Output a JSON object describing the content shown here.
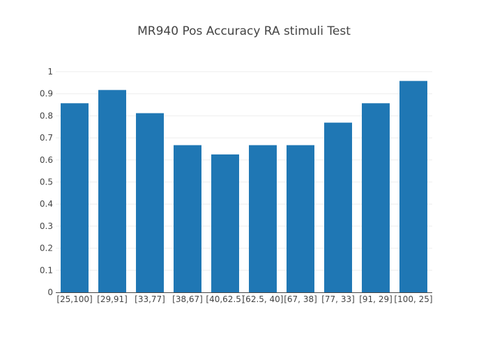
{
  "chart_data": {
    "type": "bar",
    "title": "MR940 Pos Accuracy RA stimuli Test",
    "xlabel": "",
    "ylabel": "",
    "categories": [
      "[25,100]",
      "[29,91]",
      "[33,77]",
      "[38,67]",
      "[40,62.5]",
      "[62.5, 40]",
      "[67, 38]",
      "[77, 33]",
      "[91, 29]",
      "[100, 25]"
    ],
    "values": [
      0.857,
      0.917,
      0.812,
      0.667,
      0.625,
      0.667,
      0.667,
      0.769,
      0.857,
      0.958
    ],
    "ylim": [
      0,
      1
    ],
    "yticks": [
      "0",
      "0.1",
      "0.2",
      "0.3",
      "0.4",
      "0.5",
      "0.6",
      "0.7",
      "0.8",
      "0.9",
      "1"
    ],
    "bar_color": "#1f77b4",
    "grid": true,
    "legend": "none"
  }
}
